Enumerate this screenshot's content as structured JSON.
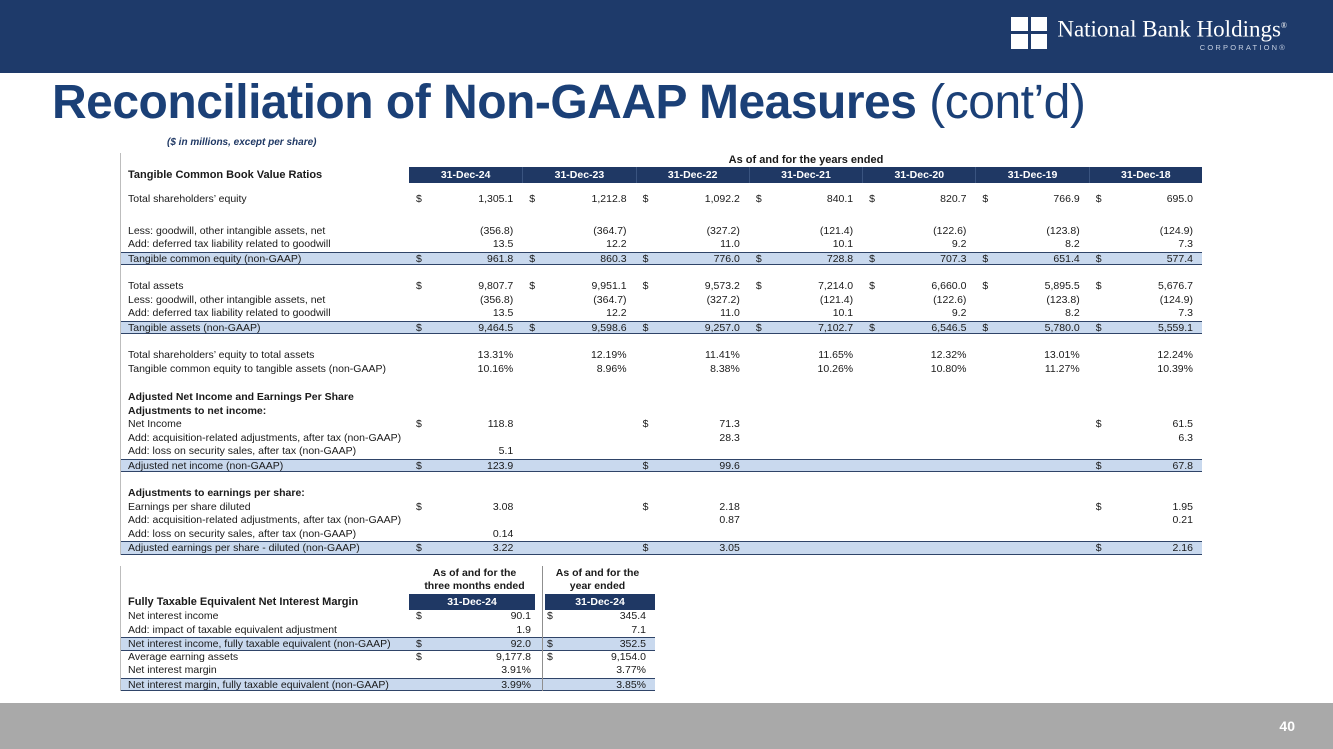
{
  "logo": {
    "name": "National Bank Holdings",
    "mark": "®",
    "sub": "CORPORATION®"
  },
  "title": {
    "main": "Reconciliation of Non-GAAP Measures",
    "suffix": " (cont’d)"
  },
  "note": "($ in millions, except per share)",
  "footer": {
    "page_number": "40"
  },
  "colors": {
    "navy_bar": "#1e3a6a",
    "band_navy": "#1f3864",
    "title_blue": "#1b4077",
    "highlight_fill": "#c9d9ee",
    "highlight_border": "#2f4468",
    "footer_gray": "#a9a9a9",
    "text_dark": "#1a1a1a"
  },
  "table1": {
    "group_header": "As of and for the years ended",
    "corner_label": "Tangible Common Book Value Ratios",
    "columns": [
      "31-Dec-24",
      "31-Dec-23",
      "31-Dec-22",
      "31-Dec-21",
      "31-Dec-20",
      "31-Dec-19",
      "31-Dec-18"
    ],
    "rows": [
      {
        "t": "spacer",
        "h": 10
      },
      {
        "t": "data",
        "label": "Total shareholders’ equity",
        "d": [
          1,
          1,
          1,
          1,
          1,
          1,
          1
        ],
        "v": [
          "1,305.1",
          "1,212.8",
          "1,092.2",
          "840.1",
          "820.7",
          "766.9",
          "695.0"
        ]
      },
      {
        "t": "spacer",
        "h": 18
      },
      {
        "t": "data",
        "label": "Less: goodwill, other intangible assets, net",
        "v": [
          "(356.8)",
          "(364.7)",
          "(327.2)",
          "(121.4)",
          "(122.6)",
          "(123.8)",
          "(124.9)"
        ]
      },
      {
        "t": "data",
        "label": "Add: deferred tax liability related to goodwill",
        "v": [
          "13.5",
          "12.2",
          "11.0",
          "10.1",
          "9.2",
          "8.2",
          "7.3"
        ]
      },
      {
        "t": "total",
        "label": "Tangible common equity (non-GAAP)",
        "d": [
          1,
          1,
          1,
          1,
          1,
          1,
          1
        ],
        "v": [
          "961.8",
          "860.3",
          "776.0",
          "728.8",
          "707.3",
          "651.4",
          "577.4"
        ]
      },
      {
        "t": "spacer",
        "h": 15
      },
      {
        "t": "data",
        "label": "Total assets",
        "d": [
          1,
          1,
          1,
          1,
          1,
          1,
          1
        ],
        "v": [
          "9,807.7",
          "9,951.1",
          "9,573.2",
          "7,214.0",
          "6,660.0",
          "5,895.5",
          "5,676.7"
        ]
      },
      {
        "t": "data",
        "label": "Less: goodwill, other intangible assets, net",
        "v": [
          "(356.8)",
          "(364.7)",
          "(327.2)",
          "(121.4)",
          "(122.6)",
          "(123.8)",
          "(124.9)"
        ]
      },
      {
        "t": "data",
        "label": "Add: deferred tax liability related to goodwill",
        "v": [
          "13.5",
          "12.2",
          "11.0",
          "10.1",
          "9.2",
          "8.2",
          "7.3"
        ]
      },
      {
        "t": "total",
        "label": "Tangible assets (non-GAAP)",
        "d": [
          1,
          1,
          1,
          1,
          1,
          1,
          1
        ],
        "v": [
          "9,464.5",
          "9,598.6",
          "9,257.0",
          "7,102.7",
          "6,546.5",
          "5,780.0",
          "5,559.1"
        ]
      },
      {
        "t": "spacer",
        "h": 15
      },
      {
        "t": "data",
        "label": "Total shareholders’ equity to total assets",
        "v": [
          "13.31%",
          "12.19%",
          "11.41%",
          "11.65%",
          "12.32%",
          "13.01%",
          "12.24%"
        ]
      },
      {
        "t": "data",
        "label": "Tangible common equity to tangible assets (non-GAAP)",
        "v": [
          "10.16%",
          "8.96%",
          "8.38%",
          "10.26%",
          "10.80%",
          "11.27%",
          "10.39%"
        ]
      },
      {
        "t": "spacer",
        "h": 15
      },
      {
        "t": "header",
        "label": "Adjusted Net Income and Earnings Per Share"
      },
      {
        "t": "header",
        "label": "Adjustments to net income:"
      },
      {
        "t": "data",
        "label": "Net Income",
        "d": [
          1,
          0,
          1,
          0,
          0,
          0,
          1
        ],
        "v": [
          "118.8",
          "",
          "71.3",
          "",
          "",
          "",
          "61.5"
        ]
      },
      {
        "t": "data",
        "label": "Add: acquisition-related adjustments, after tax (non-GAAP)",
        "v": [
          "",
          "",
          "28.3",
          "",
          "",
          "",
          "6.3"
        ]
      },
      {
        "t": "data",
        "label": "Add: loss on security sales, after tax (non-GAAP)",
        "v": [
          "5.1",
          "",
          "",
          "",
          "",
          "",
          ""
        ]
      },
      {
        "t": "total",
        "label": "Adjusted net income (non-GAAP)",
        "d": [
          1,
          0,
          1,
          0,
          0,
          0,
          1
        ],
        "v": [
          "123.9",
          "",
          "99.6",
          "",
          "",
          "",
          "67.8"
        ]
      },
      {
        "t": "spacer",
        "h": 15
      },
      {
        "t": "header",
        "label": "Adjustments to earnings per share:"
      },
      {
        "t": "data",
        "label": "Earnings per share diluted",
        "d": [
          1,
          0,
          1,
          0,
          0,
          0,
          1
        ],
        "v": [
          "3.08",
          "",
          "2.18",
          "",
          "",
          "",
          "1.95"
        ]
      },
      {
        "t": "data",
        "label": "Add: acquisition-related adjustments, after tax (non-GAAP)",
        "v": [
          "",
          "",
          "0.87",
          "",
          "",
          "",
          "0.21"
        ]
      },
      {
        "t": "data",
        "label": "Add: loss on security sales, after tax (non-GAAP)",
        "v": [
          "0.14",
          "",
          "",
          "",
          "",
          "",
          ""
        ]
      },
      {
        "t": "total",
        "label": "Adjusted earnings per share - diluted (non-GAAP)",
        "d": [
          1,
          0,
          1,
          0,
          0,
          0,
          1
        ],
        "v": [
          "3.22",
          "",
          "3.05",
          "",
          "",
          "",
          "2.16"
        ]
      }
    ]
  },
  "table2": {
    "group_headers": [
      {
        "line1": "As of and for the",
        "line2": "three months ended"
      },
      {
        "line1": "As of and for the",
        "line2": "year ended"
      }
    ],
    "corner_label": "Fully Taxable Equivalent Net Interest Margin",
    "columns": [
      "31-Dec-24",
      "31-Dec-24"
    ],
    "rows": [
      {
        "t": "data",
        "label": "Net interest income",
        "d": [
          1,
          1
        ],
        "v": [
          "90.1",
          "345.4"
        ]
      },
      {
        "t": "data",
        "label": "Add: impact of taxable equivalent adjustment",
        "v": [
          "1.9",
          "7.1"
        ]
      },
      {
        "t": "total",
        "label": "Net interest income, fully taxable equivalent (non-GAAP)",
        "d": [
          1,
          1
        ],
        "v": [
          "92.0",
          "352.5"
        ]
      },
      {
        "t": "data",
        "label": "Average earning assets",
        "d": [
          1,
          1
        ],
        "v": [
          "9,177.8",
          "9,154.0"
        ]
      },
      {
        "t": "data",
        "label": "Net interest margin",
        "v": [
          "3.91%",
          "3.77%"
        ]
      },
      {
        "t": "total",
        "label": "Net interest margin, fully taxable equivalent (non-GAAP)",
        "v": [
          "3.99%",
          "3.85%"
        ]
      }
    ]
  }
}
